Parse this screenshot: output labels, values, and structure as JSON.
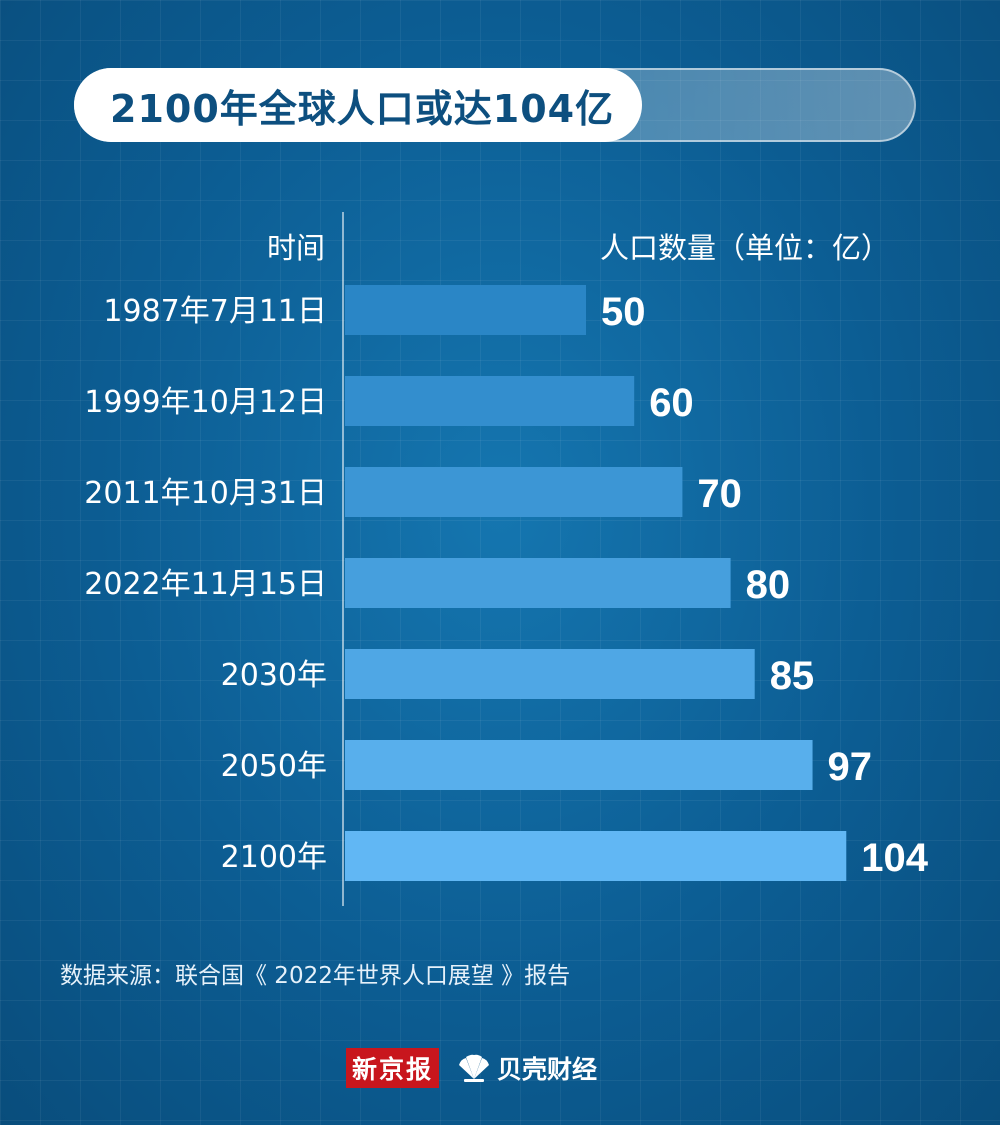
{
  "title": "2100年全球人口或达104亿",
  "source": "数据来源：联合国《 2022年世界人口展望 》报告",
  "logos": {
    "xinjingbao": "新京报",
    "beike": "贝壳财经"
  },
  "colors": {
    "bar_start": "#2a86c6",
    "bar_end": "#61b7f4",
    "text": "#ffffff",
    "title_text": "#0d4f7f"
  },
  "chart_data": {
    "type": "bar",
    "orientation": "horizontal",
    "title": "2100年全球人口或达104亿",
    "xlabel": "人口数量（单位：亿）",
    "ylabel": "时间",
    "categories": [
      "1987年7月11日",
      "1999年10月12日",
      "2011年10月31日",
      "2022年11月15日",
      "2030年",
      "2050年",
      "2100年"
    ],
    "values": [
      50,
      60,
      70,
      80,
      85,
      97,
      104
    ],
    "data_labels": [
      "50",
      "60",
      "70",
      "80",
      "85",
      "97",
      "104"
    ],
    "xlim": [
      0,
      104
    ],
    "grid": false,
    "legend": "none"
  }
}
